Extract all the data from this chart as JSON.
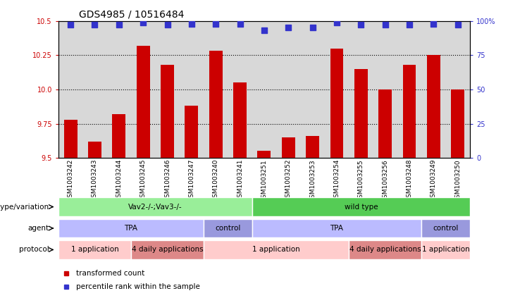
{
  "title": "GDS4985 / 10516484",
  "samples": [
    "GSM1003242",
    "GSM1003243",
    "GSM1003244",
    "GSM1003245",
    "GSM1003246",
    "GSM1003247",
    "GSM1003240",
    "GSM1003241",
    "GSM1003251",
    "GSM1003252",
    "GSM1003253",
    "GSM1003254",
    "GSM1003255",
    "GSM1003256",
    "GSM1003248",
    "GSM1003249",
    "GSM1003250"
  ],
  "bar_values": [
    9.78,
    9.62,
    9.82,
    10.32,
    10.18,
    9.88,
    10.28,
    10.05,
    9.55,
    9.65,
    9.66,
    10.3,
    10.15,
    10.0,
    10.18,
    10.25,
    10.0
  ],
  "dot_values": [
    97,
    97,
    97,
    99,
    97,
    98,
    98,
    98,
    93,
    95,
    95,
    99,
    97,
    97,
    97,
    98,
    97
  ],
  "ylim_left": [
    9.5,
    10.5
  ],
  "ylim_right": [
    0,
    100
  ],
  "yticks_left": [
    9.5,
    9.75,
    10.0,
    10.25,
    10.5
  ],
  "yticks_right": [
    0,
    25,
    50,
    75,
    100
  ],
  "bar_color": "#cc0000",
  "dot_color": "#3333cc",
  "dot_size": 28,
  "plot_bg": "#d8d8d8",
  "genotype_groups": [
    {
      "text": "Vav2-/-;Vav3-/-",
      "start": 0,
      "end": 8,
      "color": "#99ee99"
    },
    {
      "text": "wild type",
      "start": 8,
      "end": 17,
      "color": "#55cc55"
    }
  ],
  "agent_groups": [
    {
      "text": "TPA",
      "start": 0,
      "end": 6,
      "color": "#bbbbff"
    },
    {
      "text": "control",
      "start": 6,
      "end": 8,
      "color": "#9999dd"
    },
    {
      "text": "TPA",
      "start": 8,
      "end": 15,
      "color": "#bbbbff"
    },
    {
      "text": "control",
      "start": 15,
      "end": 17,
      "color": "#9999dd"
    }
  ],
  "protocol_groups": [
    {
      "text": "1 application",
      "start": 0,
      "end": 3,
      "color": "#ffcccc"
    },
    {
      "text": "4 daily applications",
      "start": 3,
      "end": 6,
      "color": "#dd8888"
    },
    {
      "text": "1 application",
      "start": 6,
      "end": 12,
      "color": "#ffcccc"
    },
    {
      "text": "4 daily applications",
      "start": 12,
      "end": 15,
      "color": "#dd8888"
    },
    {
      "text": "1 application",
      "start": 15,
      "end": 17,
      "color": "#ffcccc"
    }
  ],
  "genotype_label": "genotype/variation",
  "agent_label": "agent",
  "protocol_label": "protocol",
  "legend_bar_text": "transformed count",
  "legend_dot_text": "percentile rank within the sample",
  "label_fontsize": 6.5,
  "tick_fontsize": 7,
  "title_fontsize": 10,
  "anno_fontsize": 7.5,
  "row_label_fontsize": 7.5
}
